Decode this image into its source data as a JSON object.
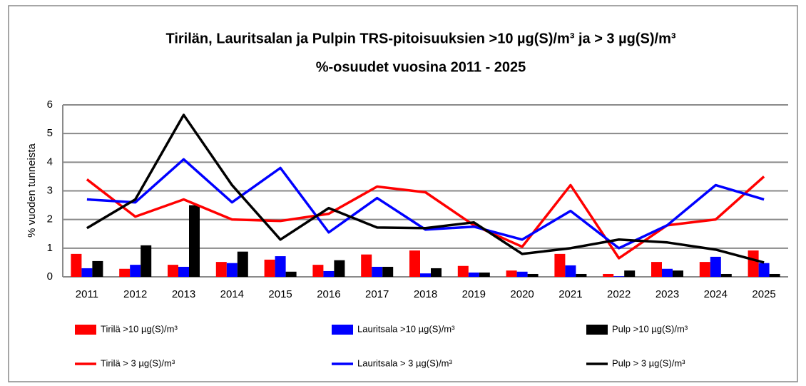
{
  "chart_data": {
    "type": "bar",
    "title": [
      "Tirilän, Lauritsalan ja Pulpin TRS-pitoisuuksien >10 µg(S)/m³ ja > 3 µg(S)/m³",
      "%-osuudet vuosina 2011 - 2025"
    ],
    "y_label": "% vuoden tunneista",
    "categories": [
      "2011",
      "2012",
      "2013",
      "2014",
      "2015",
      "2016",
      "2017",
      "2018",
      "2019",
      "2020",
      "2021",
      "2022",
      "2023",
      "2024",
      "2025"
    ],
    "ylim": [
      0,
      6
    ],
    "yticks": [
      0,
      1,
      2,
      3,
      4,
      5,
      6
    ],
    "grid": true,
    "series": [
      {
        "name": "Tirilä >10 µg(S)/m³",
        "type": "bar",
        "color": "#ff0000",
        "values": [
          0.8,
          0.28,
          0.42,
          0.52,
          0.6,
          0.42,
          0.78,
          0.92,
          0.38,
          0.22,
          0.8,
          0.1,
          0.52,
          0.52,
          0.92
        ]
      },
      {
        "name": "Lauritsala >10 µg(S)/m³",
        "type": "bar",
        "color": "#0000ff",
        "values": [
          0.3,
          0.42,
          0.35,
          0.48,
          0.72,
          0.2,
          0.35,
          0.12,
          0.15,
          0.18,
          0.4,
          0.02,
          0.28,
          0.7,
          0.48
        ]
      },
      {
        "name": "Pulp >10 µg(S)/m³",
        "type": "bar",
        "color": "#000000",
        "values": [
          0.55,
          1.1,
          2.5,
          0.88,
          0.18,
          0.58,
          0.35,
          0.3,
          0.15,
          0.1,
          0.1,
          0.22,
          0.22,
          0.1,
          0.1
        ]
      },
      {
        "name": "Tirilä > 3 µg(S)/m³",
        "type": "line",
        "color": "#ff0000",
        "values": [
          3.4,
          2.1,
          2.7,
          2.0,
          1.95,
          2.2,
          3.15,
          2.95,
          1.8,
          1.05,
          3.2,
          0.65,
          1.8,
          2.0,
          3.5
        ]
      },
      {
        "name": "Lauritsala > 3 µg(S)/m³",
        "type": "line",
        "color": "#0000ff",
        "values": [
          2.7,
          2.6,
          4.1,
          2.6,
          3.8,
          1.55,
          2.75,
          1.65,
          1.75,
          1.3,
          2.3,
          1.0,
          1.8,
          3.2,
          2.7
        ]
      },
      {
        "name": "Pulp > 3 µg(S)/m³",
        "type": "line",
        "color": "#000000",
        "values": [
          1.7,
          2.7,
          5.65,
          3.2,
          1.3,
          2.4,
          1.72,
          1.7,
          1.9,
          0.8,
          1.0,
          1.3,
          1.2,
          0.95,
          0.5
        ]
      }
    ]
  }
}
